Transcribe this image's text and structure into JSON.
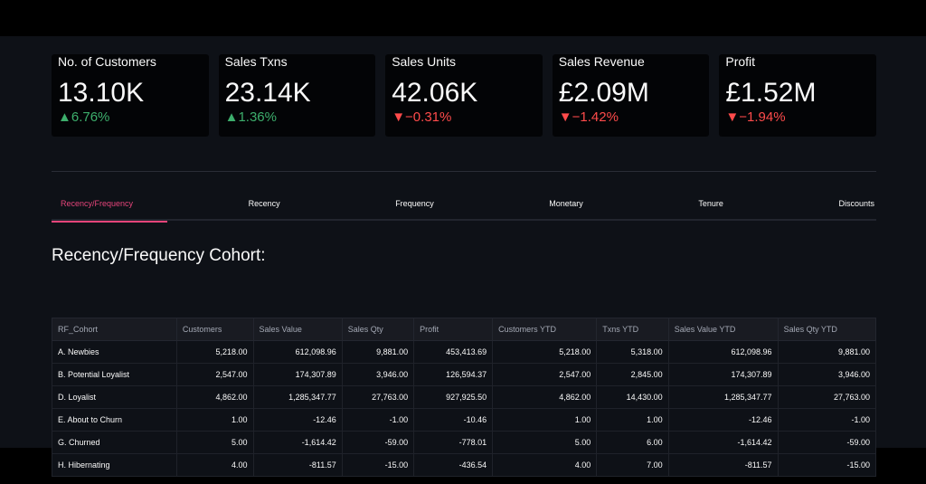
{
  "metrics": [
    {
      "label": "No. of Customers",
      "value": "13.10K",
      "delta": "6.76%",
      "direction": "up"
    },
    {
      "label": "Sales Txns",
      "value": "23.14K",
      "delta": "1.36%",
      "direction": "up"
    },
    {
      "label": "Sales Units",
      "value": "42.06K",
      "delta": "−0.31%",
      "direction": "down"
    },
    {
      "label": "Sales Revenue",
      "value": "£2.09M",
      "delta": "−1.42%",
      "direction": "down"
    },
    {
      "label": "Profit",
      "value": "£1.52M",
      "delta": "−1.94%",
      "direction": "down"
    }
  ],
  "tabs": [
    "Recency/Frequency",
    "Recency",
    "Frequency",
    "Monetary",
    "Tenure",
    "Discounts"
  ],
  "active_tab": "Recency/Frequency",
  "section_title": "Recency/Frequency Cohort:",
  "table": {
    "columns": [
      "RF_Cohort",
      "Customers",
      "Sales Value",
      "Sales Qty",
      "Profit",
      "Customers YTD",
      "Txns YTD",
      "Sales Value YTD",
      "Sales Qty YTD"
    ],
    "rows": [
      [
        "A. Newbies",
        "5,218.00",
        "612,098.96",
        "9,881.00",
        "453,413.69",
        "5,218.00",
        "5,318.00",
        "612,098.96",
        "9,881.00"
      ],
      [
        "B. Potential Loyalist",
        "2,547.00",
        "174,307.89",
        "3,946.00",
        "126,594.37",
        "2,547.00",
        "2,845.00",
        "174,307.89",
        "3,946.00"
      ],
      [
        "D. Loyalist",
        "4,862.00",
        "1,285,347.77",
        "27,763.00",
        "927,925.50",
        "4,862.00",
        "14,430.00",
        "1,285,347.77",
        "27,763.00"
      ],
      [
        "E. About to Churn",
        "1.00",
        "-12.46",
        "-1.00",
        "-10.46",
        "1.00",
        "1.00",
        "-12.46",
        "-1.00"
      ],
      [
        "G. Churned",
        "5.00",
        "-1,614.42",
        "-59.00",
        "-778.01",
        "5.00",
        "6.00",
        "-1,614.42",
        "-59.00"
      ],
      [
        "H. Hibernating",
        "4.00",
        "-811.57",
        "-15.00",
        "-436.54",
        "4.00",
        "7.00",
        "-811.57",
        "-15.00"
      ]
    ]
  },
  "colors": {
    "accent": "#e5447a",
    "positive": "#3dae6c",
    "negative": "#ff4b4b",
    "background": "#0e1117"
  }
}
